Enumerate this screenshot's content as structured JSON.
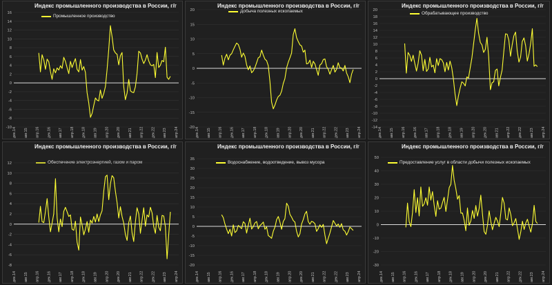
{
  "page": {
    "line_color": "#ffff33",
    "background": "#1b1b1b"
  },
  "chart_data": [
    {
      "type": "line",
      "title": "Индекс промышленного производства в России, г/г",
      "series": [
        {
          "name": "Промышленное производство",
          "values": [
            6.8,
            2.5,
            6.4,
            5.2,
            3.1,
            5.4,
            4.8,
            2.6,
            0.8,
            3.2,
            2.3,
            3.4,
            2.9,
            3.9,
            3.3,
            5.8,
            4.9,
            3.4,
            2.1,
            4.9,
            3.5,
            4.6,
            5.5,
            3.1,
            2.5,
            5.3,
            2.9,
            3.7,
            2.4,
            -2.2,
            -4.5,
            -7.8,
            -6.9,
            -5.1,
            -3.4,
            -3.9,
            -4.1,
            -1.6,
            -3.5,
            -2.4,
            -0.8,
            3.1,
            7.6,
            13.0,
            10.5,
            7.5,
            6.8,
            6.5,
            4.1,
            6.2,
            6.9,
            -0.8,
            -3.8,
            -2.3,
            0.8,
            -1.8,
            -2.1,
            -2.2,
            -0.9,
            2.1,
            7.2,
            6.8,
            5.4,
            4.4,
            5.2,
            6.4,
            5.0,
            4.1,
            3.9,
            4.2,
            1.2,
            6.9,
            3.5,
            4.0,
            5.1,
            4.8,
            8.1,
            1.3,
            0.8,
            1.5
          ]
        }
      ],
      "xlabels": [
        "дек.14",
        "авг.15",
        "апр.16",
        "дек.16",
        "авг.17",
        "апр.18",
        "дек.18",
        "авг.19",
        "апр.20",
        "дек.20",
        "авг.21",
        "апр.22",
        "дек.22",
        "авг.23",
        "апр.24"
      ],
      "yticks": [
        -10,
        -8,
        -6,
        -4,
        -2,
        0,
        2,
        4,
        6,
        8,
        10,
        12,
        14,
        16
      ],
      "ylim": [
        -10,
        16
      ],
      "grid": true,
      "legend": "top-left"
    },
    {
      "type": "line",
      "title": "Индекс промышленного производства в России, г/г",
      "series": [
        {
          "name": "Добыча полезных ископаемых",
          "values": [
            4.5,
            1.1,
            3.5,
            4.8,
            2.9,
            4.5,
            5.0,
            6.3,
            7.5,
            8.6,
            8.1,
            6.5,
            3.8,
            5.2,
            4.1,
            1.2,
            -0.5,
            0.8,
            -1.5,
            -0.9,
            0.3,
            1.9,
            3.6,
            3.9,
            6.2,
            4.5,
            3.1,
            2.6,
            0.9,
            -4.5,
            -11.5,
            -13.8,
            -12.5,
            -10.8,
            -9.6,
            -9.2,
            -7.8,
            -5.2,
            -3.5,
            0.2,
            2.1,
            3.6,
            5.2,
            11.5,
            13.5,
            10.5,
            9.1,
            8.0,
            7.6,
            5.5,
            6.2,
            1.5,
            1.7,
            2.8,
            0.3,
            2.4,
            1.5,
            -0.4,
            -2.4,
            1.1,
            1.6,
            3.0,
            3.2,
            0.6,
            -0.3,
            -2.0,
            -0.5,
            1.0,
            -1.3,
            -0.3,
            1.9,
            0.2,
            0.1,
            -0.9,
            1.0,
            -1.6,
            -2.9,
            -4.9,
            -2.0,
            -0.4
          ]
        }
      ],
      "xlabels": [
        "дек.14",
        "авг.15",
        "апр.16",
        "дек.16",
        "авг.17",
        "апр.18",
        "дек.18",
        "авг.19",
        "апр.20",
        "дек.20",
        "авг.21",
        "апр.22",
        "дек.22",
        "авг.23",
        "апр.24"
      ],
      "yticks": [
        -20,
        -15,
        -10,
        -5,
        0,
        5,
        10,
        15,
        20
      ],
      "ylim": [
        -20,
        20
      ],
      "grid": true,
      "legend": "top-left"
    },
    {
      "type": "line",
      "title": "Индекс промышленного производства в России, г/г",
      "series": [
        {
          "name": "Обрабатывающее производство",
          "values": [
            10.2,
            1.6,
            7.6,
            6.8,
            5.0,
            6.8,
            4.5,
            2.2,
            4.5,
            8.1,
            6.8,
            2.3,
            5.6,
            2.1,
            2.8,
            6.2,
            3.4,
            3.9,
            1.7,
            5.8,
            3.8,
            5.8,
            5.5,
            4.6,
            2.0,
            4.7,
            2.5,
            5.1,
            3.2,
            -0.1,
            -4.5,
            -7.8,
            -5.0,
            -2.8,
            -0.9,
            -1.3,
            -2.1,
            0.5,
            0.2,
            3.2,
            6.0,
            10.0,
            14.2,
            17.5,
            13.2,
            10.5,
            9.8,
            7.6,
            8.5,
            12.0,
            6.4,
            -3.2,
            -1.2,
            -0.9,
            2.4,
            2.8,
            -2.1,
            0.4,
            2.5,
            7.8,
            13.0,
            12.9,
            11.2,
            6.5,
            9.8,
            12.4,
            13.5,
            8.0,
            4.8,
            6.3,
            10.8,
            11.8,
            9.5,
            5.1,
            7.2,
            10.2,
            14.5,
            3.6,
            4.0,
            3.5
          ]
        }
      ],
      "xlabels": [
        "дек.14",
        "авг.15",
        "апр.16",
        "дек.16",
        "авг.17",
        "апр.18",
        "дек.18",
        "авг.19",
        "апр.20",
        "дек.20",
        "авг.21",
        "апр.22",
        "дек.22",
        "авг.23",
        "апр.24"
      ],
      "yticks": [
        -14,
        -12,
        -10,
        -8,
        -6,
        -4,
        -2,
        0,
        2,
        4,
        6,
        8,
        10,
        12,
        14,
        16,
        18,
        20
      ],
      "ylim": [
        -14,
        20
      ],
      "grid": true,
      "legend": "top-left"
    },
    {
      "type": "line",
      "title": "Индекс промышленного производства в России, г/г",
      "series": [
        {
          "name": "Обеспечение электроэнергией, газом и паром",
          "values": [
            0.3,
            3.5,
            0.5,
            0.3,
            2.5,
            5.0,
            1.4,
            -1.5,
            0.2,
            2.0,
            8.9,
            1.2,
            -1.5,
            1.0,
            -0.5,
            2.5,
            3.3,
            2.4,
            1.5,
            1.8,
            -1.0,
            -1.2,
            0.6,
            -3.5,
            -5.1,
            1.4,
            -0.2,
            -2.1,
            -1.0,
            0.5,
            -1.6,
            0.8,
            0.2,
            1.5,
            0.4,
            2.0,
            0.5,
            1.8,
            2.6,
            6.5,
            9.3,
            9.6,
            4.8,
            7.9,
            9.5,
            9.1,
            6.4,
            4.2,
            1.2,
            3.4,
            1.5,
            0.2,
            -2.0,
            -3.2,
            0.3,
            1.6,
            -1.7,
            -3.4,
            0.4,
            3.2,
            2.0,
            -1.8,
            0.8,
            3.2,
            -0.4,
            1.8,
            1.4,
            3.3,
            2.2,
            -0.5,
            -1.8,
            1.7,
            -0.6,
            -1.3,
            1.7,
            1.6,
            -0.5,
            -6.8,
            -2.1,
            2.4
          ]
        }
      ],
      "xlabels": [
        "дек.14",
        "авг.15",
        "апр.16",
        "дек.16",
        "авг.17",
        "апр.18",
        "дек.18",
        "авг.19",
        "апр.20",
        "дек.20",
        "авг.21",
        "апр.22",
        "дек.22",
        "авг.23",
        "апр.24"
      ],
      "yticks": [
        -8,
        -6,
        -4,
        -2,
        0,
        2,
        4,
        6,
        8,
        10,
        12
      ],
      "ylim": [
        -8,
        12
      ],
      "grid": true,
      "legend": "top-left"
    },
    {
      "type": "line",
      "title": "Индекс промышленного производства в России, г/г",
      "series": [
        {
          "name": "Водоснабжение, водоотведение, вывоз мусора",
          "values": [
            6.0,
            4.5,
            1.2,
            -1.5,
            -3.8,
            -1.5,
            -5.0,
            0.8,
            -3.2,
            -2.4,
            0.5,
            -0.4,
            -1.2,
            2.4,
            1.5,
            -3.5,
            0.5,
            4.2,
            -1.4,
            -0.1,
            1.8,
            2.5,
            -1.3,
            0.4,
            1.2,
            2.2,
            -1.5,
            -0.3,
            -4.8,
            -5.4,
            -6.2,
            -2.5,
            -0.4,
            3.5,
            5.1,
            2.2,
            -1.5,
            2.5,
            4.0,
            12.0,
            10.5,
            6.2,
            4.8,
            3.0,
            2.2,
            -2.5,
            -5.5,
            -3.8,
            1.2,
            3.5,
            6.4,
            7.8,
            2.5,
            1.1,
            2.6,
            2.2,
            1.4,
            -2.6,
            -1.2,
            0.8,
            -0.5,
            1.0,
            -4.5,
            -9.0,
            -6.2,
            -3.5,
            -0.3,
            3.0,
            1.6,
            0.2,
            1.2,
            -0.5,
            1.4,
            -1.8,
            -2.5,
            -4.5,
            -2.8,
            -0.4,
            -1.2,
            -2.1
          ]
        }
      ],
      "xlabels": [
        "дек.14",
        "авг.15",
        "апр.16",
        "дек.16",
        "авг.17",
        "апр.18",
        "дек.18",
        "авг.19",
        "апр.20",
        "дек.20",
        "авг.21",
        "апр.22",
        "дек.22",
        "авг.23",
        "апр.24"
      ],
      "yticks": [
        -20,
        -15,
        -10,
        -5,
        0,
        5,
        10,
        15,
        20,
        25,
        30,
        35
      ],
      "ylim": [
        -20,
        35
      ],
      "grid": true,
      "legend": "top-left"
    },
    {
      "type": "line",
      "title": "Индекс промышленного производства в России, г/г",
      "series": [
        {
          "name": "Предоставление услуг в области добычи полезных ископаемых",
          "values": [
            -2.0,
            16.0,
            2.2,
            -1.5,
            9.2,
            26.0,
            9.0,
            20.0,
            6.4,
            28.0,
            13.6,
            15.4,
            20.0,
            14.4,
            28.0,
            18.2,
            24.5,
            14.2,
            6.1,
            17.8,
            11.5,
            12.2,
            16.4,
            20.3,
            9.8,
            18.4,
            27.5,
            30.0,
            44.0,
            33.0,
            26.8,
            18.9,
            21.6,
            8.5,
            8.6,
            3.2,
            -4.5,
            12.4,
            -0.5,
            2.8,
            10.5,
            4.6,
            14.2,
            6.3,
            12.0,
            21.9,
            7.5,
            -5.2,
            -7.2,
            -0.6,
            10.2,
            2.4,
            -3.8,
            1.2,
            5.4,
            2.6,
            -1.5,
            8.5,
            20.2,
            16.0,
            4.2,
            3.5,
            12.4,
            7.5,
            -0.8,
            1.5,
            4.5,
            -3.2,
            -11.0,
            -5.2,
            2.5,
            -3.6,
            1.2,
            4.0,
            -1.2,
            -5.6,
            1.0,
            14.3,
            2.4,
            0.8
          ]
        }
      ],
      "xlabels": [
        "дек.14",
        "авг.15",
        "апр.16",
        "дек.16",
        "авг.17",
        "апр.18",
        "дек.18",
        "авг.19",
        "апр.20",
        "дек.20",
        "авг.21",
        "апр.22",
        "дек.22",
        "авг.23",
        "апр.24"
      ],
      "yticks": [
        -30,
        -20,
        -10,
        0,
        10,
        20,
        30,
        40,
        50
      ],
      "ylim": [
        -30,
        50
      ],
      "grid": true,
      "legend": "top-left"
    }
  ]
}
